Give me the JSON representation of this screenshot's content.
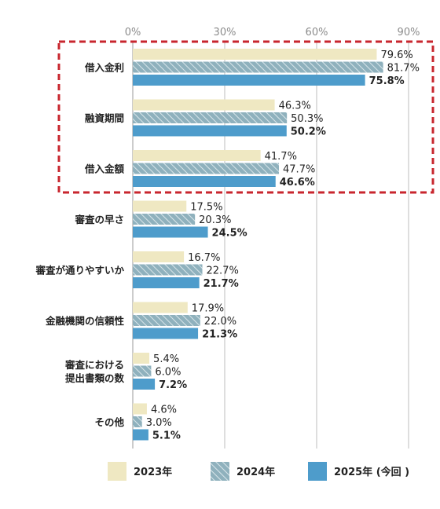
{
  "chart_data": {
    "type": "bar",
    "orientation": "horizontal",
    "x_ticks": [
      "0%",
      "30%",
      "60%",
      "90%"
    ],
    "xlim": [
      0,
      90
    ],
    "grid": true,
    "legend_position": "bottom",
    "highlight": {
      "categories": [
        "借入金利",
        "融資期間",
        "借入金額"
      ],
      "style": "dashed-red-box"
    },
    "categories": [
      [
        "借入金利"
      ],
      [
        "融資期間"
      ],
      [
        "借入金額"
      ],
      [
        "審査の早さ"
      ],
      [
        "審査が通りやすいか"
      ],
      [
        "金融機関の信頼性"
      ],
      [
        "審査における",
        "提出書類の数"
      ],
      [
        "その他"
      ]
    ],
    "series": [
      {
        "name": "2023年",
        "pattern": "solid",
        "color": "#efe8c2",
        "values": [
          79.6,
          46.3,
          41.7,
          17.5,
          16.7,
          17.9,
          5.4,
          4.6
        ],
        "labels": [
          "79.6%",
          "46.3%",
          "41.7%",
          "17.5%",
          "16.7%",
          "17.9%",
          "5.4%",
          "4.6%"
        ]
      },
      {
        "name": "2024年",
        "pattern": "hatched",
        "color": "#8fb1bd",
        "values": [
          81.7,
          50.3,
          47.7,
          20.3,
          22.7,
          22.0,
          6.0,
          3.0
        ],
        "labels": [
          "81.7%",
          "50.3%",
          "47.7%",
          "20.3%",
          "22.7%",
          "22.0%",
          "6.0%",
          "3.0%"
        ]
      },
      {
        "name": "2025年 (今回 )",
        "pattern": "solid",
        "color": "#4e9ccb",
        "bold_labels": true,
        "values": [
          75.8,
          50.2,
          46.6,
          24.5,
          21.7,
          21.3,
          7.2,
          5.1
        ],
        "labels": [
          "75.8%",
          "50.2%",
          "46.6%",
          "24.5%",
          "21.7%",
          "21.3%",
          "7.2%",
          "5.1%"
        ]
      }
    ],
    "colors": {
      "highlight_box": "#c8262e",
      "grid": "#bdbdbd"
    }
  }
}
